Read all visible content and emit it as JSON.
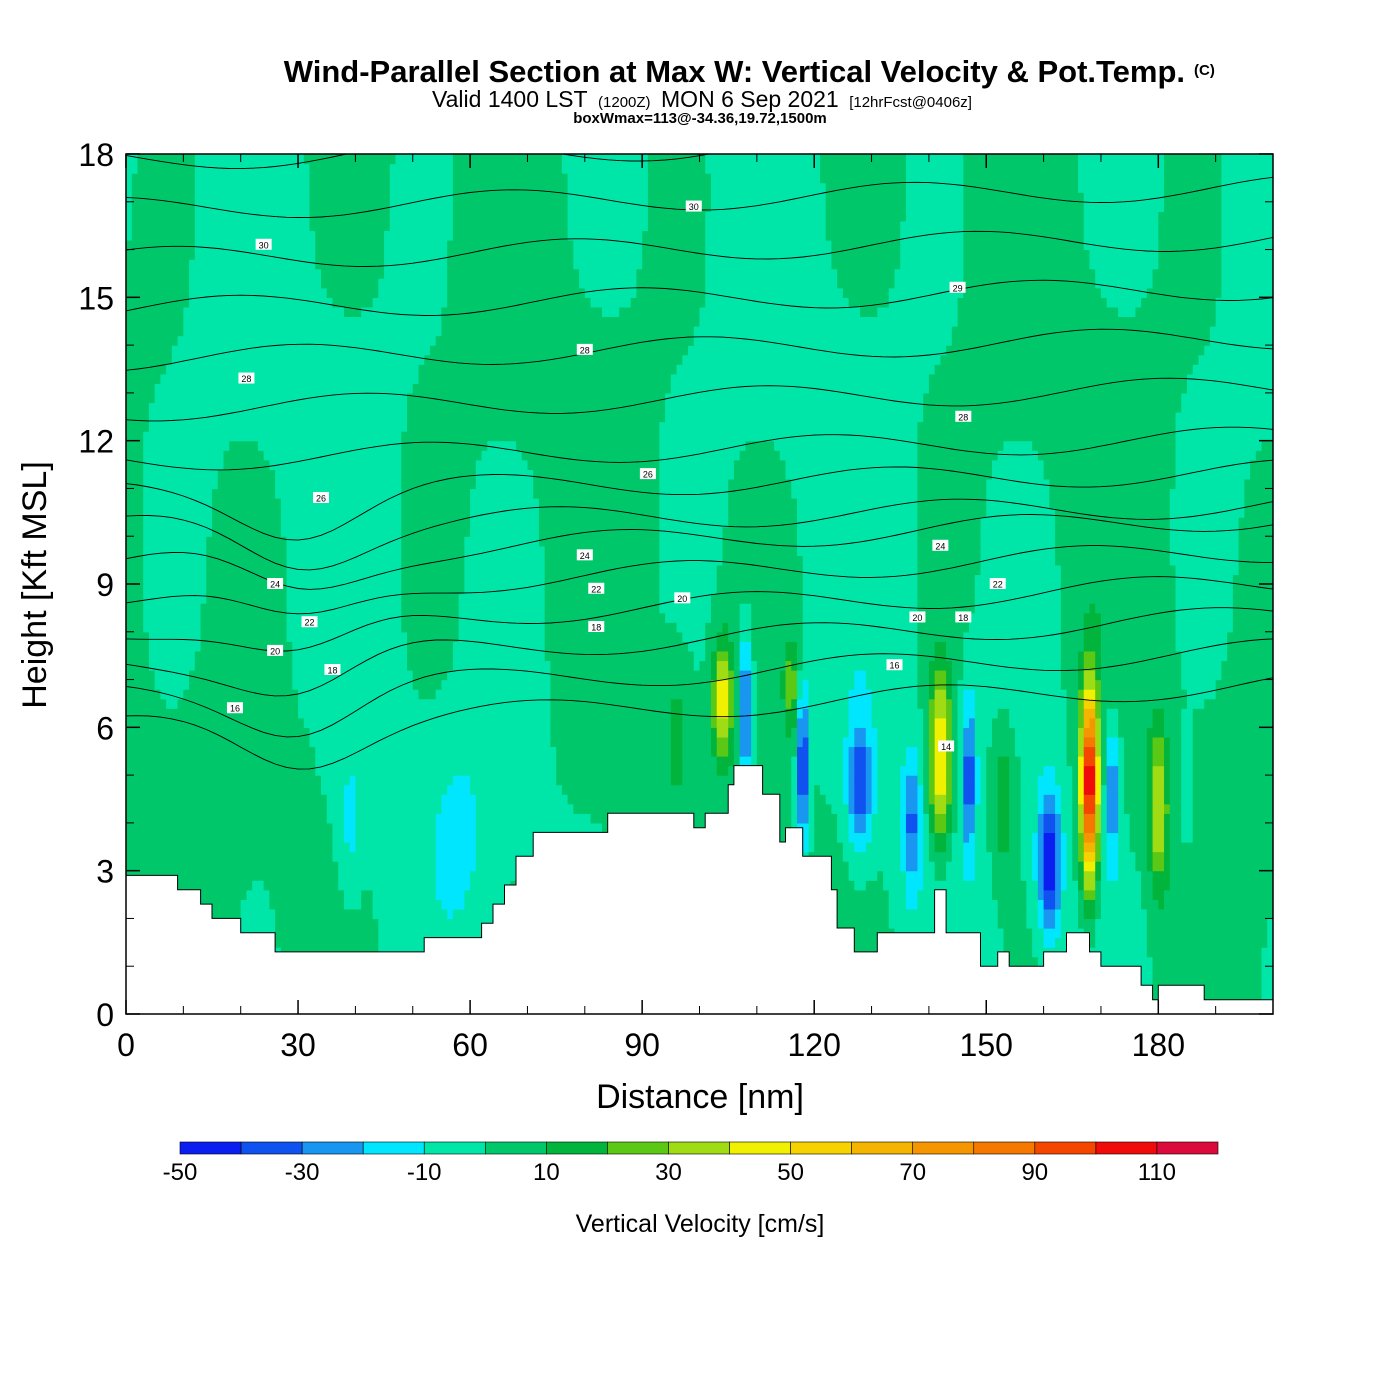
{
  "title": "Wind-Parallel Section at Max W: Vertical Velocity & Pot.Temp.",
  "title_mark": "(C)",
  "subtitle": {
    "part1": "Valid 1400 LST",
    "part2": "(1200Z)",
    "part3": "MON 6 Sep 2021",
    "part4": "[12hrFcst@0406z]"
  },
  "subtitle2": "boxWmax=113@-34.36,19.72,1500m",
  "chart_data": {
    "type": "heatmap",
    "xlabel": "Distance [nm]",
    "ylabel": "Height [Kft MSL]",
    "xlim": [
      0,
      200
    ],
    "ylim": [
      0,
      18
    ],
    "x_ticks": [
      "0",
      "30",
      "60",
      "90",
      "120",
      "150",
      "180"
    ],
    "y_ticks": [
      "0",
      "3",
      "6",
      "9",
      "12",
      "15",
      "18"
    ],
    "colorbar": {
      "title": "Vertical Velocity [cm/s]",
      "labels": [
        "-50",
        "-30",
        "-10",
        "10",
        "30",
        "50",
        "70",
        "90",
        "110"
      ],
      "levels": [
        -50,
        -40,
        -30,
        -20,
        -10,
        0,
        10,
        20,
        30,
        40,
        50,
        60,
        70,
        80,
        90,
        100,
        110,
        120
      ],
      "colors": [
        "#0a1ef0",
        "#1052f0",
        "#1896f0",
        "#00e6ff",
        "#00e6a8",
        "#00c86a",
        "#00b43c",
        "#5ac814",
        "#a0dc14",
        "#f0f000",
        "#f5d200",
        "#f5b400",
        "#f59600",
        "#f57800",
        "#f54600",
        "#f00a0a",
        "#dc0a3c"
      ]
    },
    "background_w_cms": 0,
    "terrain_kft": {
      "x": [
        0,
        9,
        9,
        13,
        13,
        15,
        15,
        20,
        20,
        26,
        26,
        52,
        52,
        62,
        62,
        64,
        64,
        66,
        66,
        68,
        68,
        71,
        71,
        84,
        84,
        99,
        99,
        101,
        101,
        105,
        105,
        106,
        106,
        111,
        111,
        114,
        114,
        115,
        115,
        118,
        118,
        123,
        123,
        124,
        124,
        127,
        127,
        131,
        131,
        141,
        141,
        143,
        143,
        149,
        149,
        152,
        152,
        154,
        154,
        160,
        160,
        164,
        164,
        168,
        168,
        170,
        170,
        177,
        177,
        179,
        179,
        180,
        180,
        188,
        188,
        190,
        190,
        200
      ],
      "height": [
        2.9,
        2.9,
        2.6,
        2.6,
        2.3,
        2.3,
        2.0,
        2.0,
        1.7,
        1.7,
        1.3,
        1.3,
        1.6,
        1.6,
        1.9,
        1.9,
        2.3,
        2.3,
        2.7,
        2.7,
        3.3,
        3.3,
        3.8,
        3.8,
        4.2,
        4.2,
        3.9,
        3.9,
        4.2,
        4.2,
        4.8,
        4.8,
        5.2,
        5.2,
        4.6,
        4.6,
        3.6,
        3.6,
        3.9,
        3.9,
        3.3,
        3.3,
        2.6,
        2.6,
        1.8,
        1.8,
        1.3,
        1.3,
        1.7,
        1.7,
        2.6,
        2.6,
        1.7,
        1.7,
        1.0,
        1.0,
        1.3,
        1.3,
        1.0,
        1.0,
        1.3,
        1.3,
        1.7,
        1.7,
        1.3,
        1.3,
        1.0,
        1.0,
        0.6,
        0.6,
        0.3,
        0.3,
        0.6,
        0.6,
        0.3,
        0.3,
        0.3,
        0.3
      ]
    },
    "vertical_velocity_cells_cms": [
      {
        "x": 104,
        "y": 6.6,
        "sx": 1.8,
        "sy": 1.2,
        "w": 45
      },
      {
        "x": 108,
        "y": 6.3,
        "sx": 1.2,
        "sy": 1.6,
        "w": -40
      },
      {
        "x": 116,
        "y": 6.8,
        "sx": 1.3,
        "sy": 1.0,
        "w": 25
      },
      {
        "x": 118,
        "y": 5.2,
        "sx": 1.0,
        "sy": 1.6,
        "w": -45
      },
      {
        "x": 128,
        "y": 4.8,
        "sx": 2.2,
        "sy": 1.4,
        "w": -35
      },
      {
        "x": 137,
        "y": 4.0,
        "sx": 1.6,
        "sy": 1.4,
        "w": -30
      },
      {
        "x": 142,
        "y": 5.4,
        "sx": 2.0,
        "sy": 1.8,
        "w": 55
      },
      {
        "x": 147,
        "y": 5.0,
        "sx": 1.2,
        "sy": 1.6,
        "w": -35
      },
      {
        "x": 153,
        "y": 4.5,
        "sx": 2.2,
        "sy": 1.6,
        "w": 20
      },
      {
        "x": 161,
        "y": 3.2,
        "sx": 2.0,
        "sy": 1.5,
        "w": -50
      },
      {
        "x": 168,
        "y": 4.8,
        "sx": 1.5,
        "sy": 2.0,
        "w": 113
      },
      {
        "x": 172,
        "y": 4.6,
        "sx": 1.4,
        "sy": 1.6,
        "w": -30
      },
      {
        "x": 180,
        "y": 4.3,
        "sx": 1.6,
        "sy": 1.6,
        "w": 40
      },
      {
        "x": 185,
        "y": 4.5,
        "sx": 1.4,
        "sy": 1.2,
        "w": -10
      },
      {
        "x": 39,
        "y": 3.8,
        "sx": 2.0,
        "sy": 1.6,
        "w": -12
      },
      {
        "x": 58,
        "y": 3.8,
        "sx": 4.0,
        "sy": 1.6,
        "w": -12
      },
      {
        "x": 30,
        "y": 4.2,
        "sx": 3.0,
        "sy": 1.6,
        "w": 8
      },
      {
        "x": 96,
        "y": 6.0,
        "sx": 2.5,
        "sy": 1.6,
        "w": 12
      }
    ],
    "potential_temperature_contour_labels": [
      {
        "x": 24,
        "y": 16.1,
        "label": "30"
      },
      {
        "x": 99,
        "y": 16.9,
        "label": "30"
      },
      {
        "x": 145,
        "y": 15.2,
        "label": "29"
      },
      {
        "x": 80,
        "y": 13.9,
        "label": "28"
      },
      {
        "x": 21,
        "y": 13.3,
        "label": "28"
      },
      {
        "x": 146,
        "y": 12.5,
        "label": "28"
      },
      {
        "x": 91,
        "y": 11.3,
        "label": "26"
      },
      {
        "x": 34,
        "y": 10.8,
        "label": "26"
      },
      {
        "x": 142,
        "y": 9.8,
        "label": "24"
      },
      {
        "x": 80,
        "y": 9.6,
        "label": "24"
      },
      {
        "x": 26,
        "y": 9.0,
        "label": "24"
      },
      {
        "x": 152,
        "y": 9.0,
        "label": "22"
      },
      {
        "x": 82,
        "y": 8.9,
        "label": "22"
      },
      {
        "x": 32,
        "y": 8.2,
        "label": "22"
      },
      {
        "x": 97,
        "y": 8.7,
        "label": "20"
      },
      {
        "x": 138,
        "y": 8.3,
        "label": "20"
      },
      {
        "x": 26,
        "y": 7.6,
        "label": "20"
      },
      {
        "x": 146,
        "y": 8.3,
        "label": "18"
      },
      {
        "x": 82,
        "y": 8.1,
        "label": "18"
      },
      {
        "x": 36,
        "y": 7.2,
        "label": "18"
      },
      {
        "x": 134,
        "y": 7.3,
        "label": "16"
      },
      {
        "x": 19,
        "y": 6.4,
        "label": "16"
      },
      {
        "x": 143,
        "y": 5.6,
        "label": "14"
      }
    ],
    "potential_temperature_levels": [
      14,
      15,
      16,
      17,
      18,
      19,
      20,
      21,
      22,
      23,
      24,
      25,
      26,
      27,
      28,
      29,
      30,
      31
    ],
    "grid": false,
    "legend": "bottom"
  }
}
